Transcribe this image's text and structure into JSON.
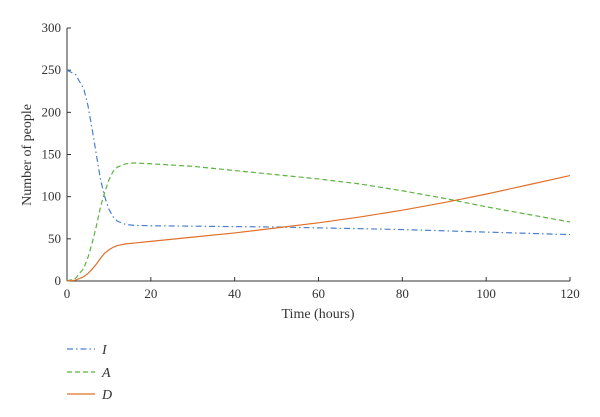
{
  "chart_data": {
    "type": "line",
    "title": "",
    "xlabel": "Time (hours)",
    "ylabel": "Number of people",
    "xlim": [
      0,
      120
    ],
    "ylim": [
      0,
      300
    ],
    "xticks": [
      0,
      20,
      40,
      60,
      80,
      100,
      120
    ],
    "yticks": [
      0,
      50,
      100,
      150,
      200,
      250,
      300
    ],
    "grid": false,
    "legend_position": "bottom-left",
    "series": [
      {
        "name": "I",
        "color": "#4a7fd0",
        "dash": "dash-dot",
        "x": [
          0,
          2,
          4,
          5,
          6,
          7,
          8,
          9,
          10,
          11,
          12,
          14,
          16,
          20,
          30,
          40,
          50,
          60,
          70,
          80,
          90,
          100,
          110,
          120
        ],
        "y": [
          250,
          245,
          228,
          208,
          180,
          150,
          120,
          100,
          85,
          76,
          71,
          67,
          66,
          65.5,
          65,
          64.5,
          64,
          63,
          62,
          61,
          59.5,
          58,
          56.5,
          55
        ]
      },
      {
        "name": "A",
        "color": "#5cb341",
        "dash": "dashed",
        "x": [
          0,
          2,
          4,
          5,
          6,
          7,
          8,
          9,
          10,
          11,
          12,
          14,
          16,
          18,
          20,
          30,
          40,
          50,
          60,
          70,
          80,
          90,
          100,
          110,
          120
        ],
        "y": [
          0,
          3,
          15,
          28,
          45,
          65,
          88,
          105,
          120,
          130,
          135,
          139,
          140,
          139.5,
          139,
          136,
          131,
          126,
          121,
          115,
          107,
          98,
          88,
          79,
          70
        ]
      },
      {
        "name": "D",
        "color": "#e0702a",
        "dash": "solid",
        "x": [
          0,
          2,
          4,
          5,
          6,
          7,
          8,
          9,
          10,
          11,
          12,
          14,
          16,
          20,
          30,
          40,
          50,
          60,
          70,
          80,
          90,
          100,
          110,
          120
        ],
        "y": [
          0,
          1,
          5,
          9,
          14,
          20,
          27,
          33,
          37,
          40,
          42,
          44,
          45,
          47,
          52,
          57,
          63,
          69,
          76,
          84,
          93,
          103,
          114,
          125
        ]
      }
    ]
  }
}
